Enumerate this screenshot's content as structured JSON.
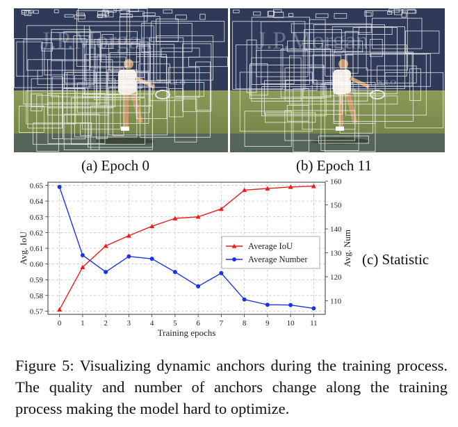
{
  "panels": [
    {
      "caption": "(a) Epoch 0",
      "watermark": "J.P.Morgan",
      "board_text": "POLO"
    },
    {
      "caption": "(b) Epoch 11",
      "watermark": "J.P.Morgan",
      "board_text": "POLO"
    }
  ],
  "side_label": "(c) Statistic",
  "caption": {
    "label": "Figure 5:",
    "text": "Visualizing dynamic anchors during the training process. The quality and number of anchors change along the training process making the model hard to optimize."
  },
  "colors": {
    "iou": "#ee1c1c",
    "number": "#1a33e6",
    "grid": "#bdbdbd",
    "court": "#7f9050",
    "wall": "#2e3a58"
  },
  "chart_data": {
    "type": "line",
    "xlabel": "Training epochs",
    "ylabel_left": "Avg. IoU",
    "ylabel_right": "Avg. Num",
    "x": [
      0,
      1,
      2,
      3,
      4,
      5,
      6,
      7,
      8,
      9,
      10,
      11
    ],
    "xlim": [
      -0.5,
      11.5
    ],
    "ylim_left": [
      0.568,
      0.652
    ],
    "ylim_right": [
      104.3,
      159.5
    ],
    "yticks_left": [
      "0.57",
      "0.58",
      "0.59",
      "0.60",
      "0.61",
      "0.62",
      "0.63",
      "0.64",
      "0.65"
    ],
    "yticks_right": [
      "110",
      "120",
      "130",
      "140",
      "150",
      "160"
    ],
    "grid": true,
    "legend_position": "right-center",
    "series": [
      {
        "name": "Average IoU",
        "axis": "left",
        "marker": "triangle",
        "color": "#ee1c1c",
        "values": [
          0.571,
          0.598,
          0.6115,
          0.618,
          0.624,
          0.629,
          0.63,
          0.635,
          0.647,
          0.648,
          0.649,
          0.6495
        ]
      },
      {
        "name": "Average Number",
        "axis": "right",
        "marker": "circle",
        "color": "#1a33e6",
        "values": [
          157.5,
          129.0,
          122.0,
          128.5,
          127.5,
          122.0,
          116.0,
          121.5,
          110.5,
          108.3,
          108.2,
          106.8
        ]
      }
    ]
  }
}
